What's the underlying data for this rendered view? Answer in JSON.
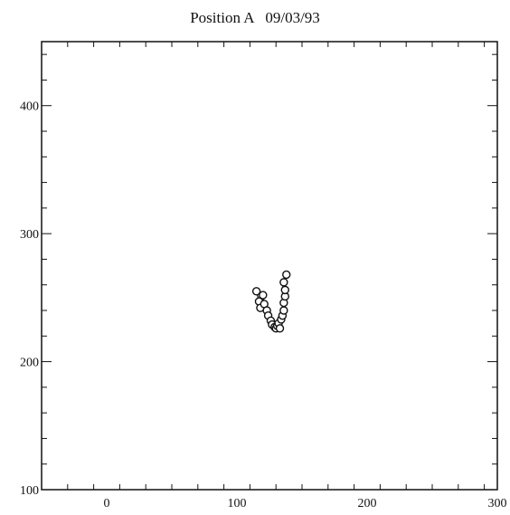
{
  "chart_data": {
    "type": "scatter",
    "title": "Position A   09/03/93",
    "xlabel": "",
    "ylabel": "",
    "xlim": [
      -50,
      300
    ],
    "ylim": [
      100,
      450
    ],
    "x_ticks": [
      0,
      100,
      200,
      300
    ],
    "y_ticks": [
      100,
      200,
      300,
      400
    ],
    "grid": false,
    "marker": "open-circle",
    "connected": true,
    "series": [
      {
        "points": [
          [
            115,
            255
          ],
          [
            117,
            247
          ],
          [
            118,
            242
          ],
          [
            120,
            252
          ],
          [
            121,
            245
          ],
          [
            123,
            240
          ],
          [
            124,
            236
          ],
          [
            126,
            232
          ],
          [
            127,
            229
          ],
          [
            129,
            227
          ],
          [
            130,
            226
          ],
          [
            131,
            228
          ],
          [
            132,
            230
          ],
          [
            133,
            226
          ],
          [
            134,
            233
          ],
          [
            135,
            236
          ],
          [
            136,
            240
          ],
          [
            136,
            246
          ],
          [
            137,
            251
          ],
          [
            137,
            256
          ],
          [
            136,
            262
          ],
          [
            138,
            268
          ]
        ]
      }
    ]
  }
}
